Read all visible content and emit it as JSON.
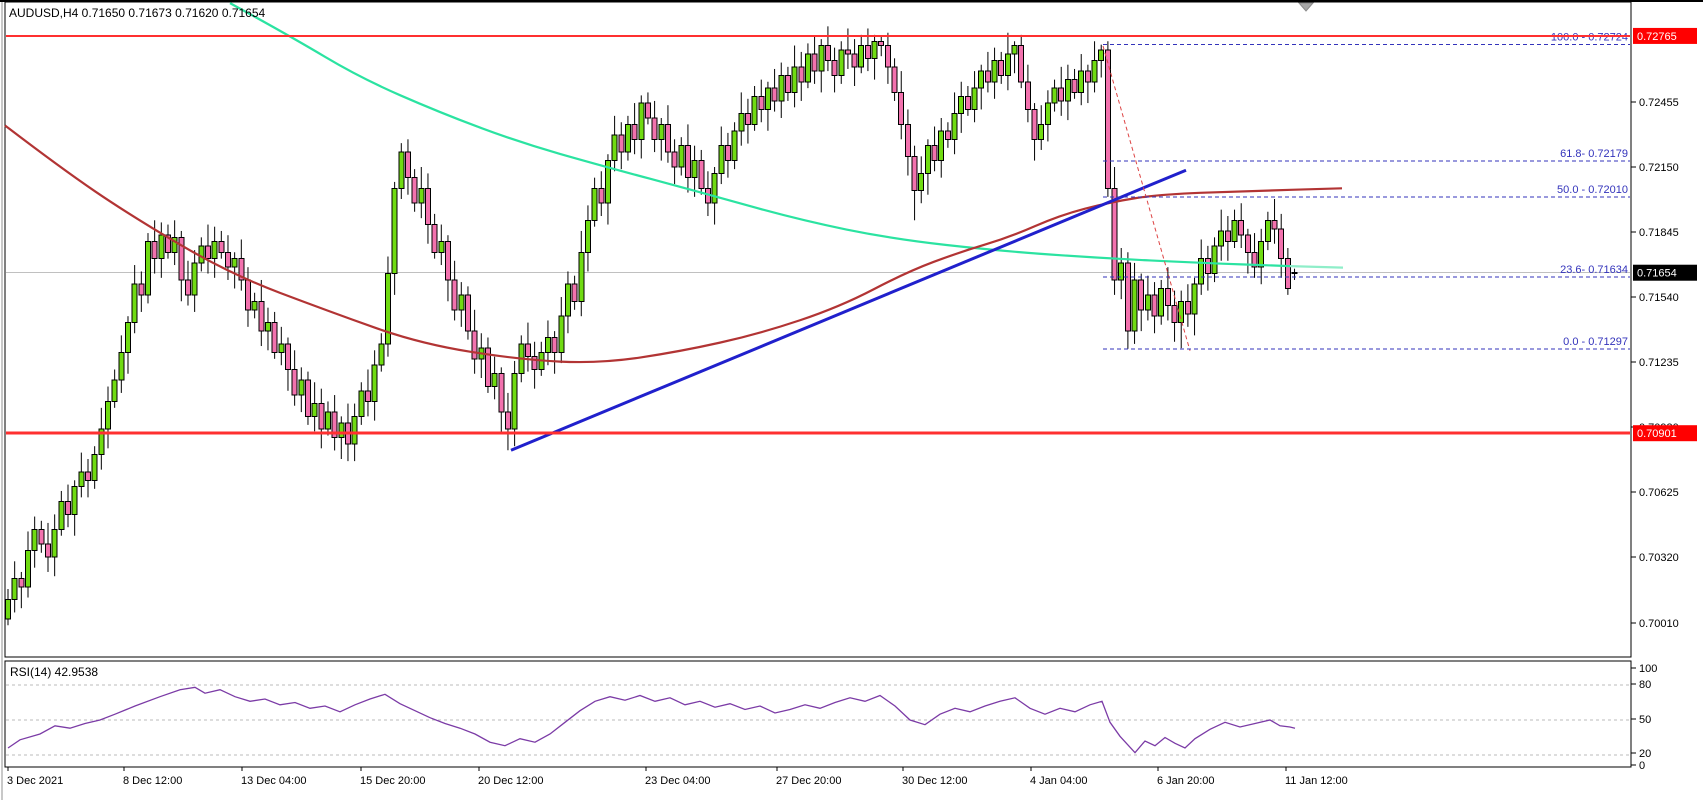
{
  "window": {
    "title": "AUDUSD,H4  0.71650 0.71673 0.71620 0.71654",
    "symbol": "AUDUSD",
    "timeframe": "H4"
  },
  "colors": {
    "bull_candle": "#70DB12",
    "bear_candle": "#F272AE",
    "candle_border": "#000000",
    "ma_slow": "#B23434",
    "ma_fast_green": "#2BE3A1",
    "ma_fast_green_tail": "#8FEEC9",
    "trendline": "#2020CC",
    "fib_line": "#3333BB",
    "fib_diagonal": "#DD4444",
    "resistance_line": "#FF3030",
    "current_price_line": "#C0C0C0",
    "rsi_line": "#7B3BA6",
    "rsi_grid": "#BBBBBB",
    "badge_red": "#FF0000",
    "badge_black": "#000000",
    "axis_text": "#000000"
  },
  "price_axis": {
    "ticks": [
      "0.72455",
      "0.72150",
      "0.71845",
      "0.71540",
      "0.71235",
      "0.70930",
      "0.70625",
      "0.70320",
      "0.70010"
    ],
    "badges": [
      {
        "text": "0.72765",
        "price": 0.72765,
        "color": "red"
      },
      {
        "text": "0.71654",
        "price": 0.71654,
        "color": "black"
      },
      {
        "text": "0.70901",
        "price": 0.70901,
        "color": "red"
      }
    ]
  },
  "time_axis": {
    "labels": [
      {
        "text": "3 Dec 2021",
        "x": 7
      },
      {
        "text": "8 Dec 12:00",
        "x": 123
      },
      {
        "text": "13 Dec 04:00",
        "x": 241
      },
      {
        "text": "15 Dec 20:00",
        "x": 360
      },
      {
        "text": "20 Dec 12:00",
        "x": 478
      },
      {
        "text": "23 Dec 04:00",
        "x": 645
      },
      {
        "text": "27 Dec 20:00",
        "x": 776
      },
      {
        "text": "30 Dec 12:00",
        "x": 902
      },
      {
        "text": "4 Jan 04:00",
        "x": 1030
      },
      {
        "text": "6 Jan 20:00",
        "x": 1157
      },
      {
        "text": "11 Jan 12:00",
        "x": 1285
      }
    ]
  },
  "chart_data": {
    "type": "candlestick",
    "symbol": "AUDUSD",
    "timeframe": "H4",
    "title": "AUDUSD,H4  0.71650 0.71673 0.71620 0.71654",
    "last_ohlc": {
      "open": 0.7165,
      "high": 0.71673,
      "low": 0.7162,
      "close": 0.71654
    },
    "ylim": [
      0.6995,
      0.7292
    ],
    "closes": [
      0.7012,
      0.7022,
      0.7018,
      0.7035,
      0.7045,
      0.7038,
      0.7032,
      0.7045,
      0.7058,
      0.7052,
      0.7065,
      0.7072,
      0.7068,
      0.708,
      0.7092,
      0.7105,
      0.7115,
      0.7128,
      0.7142,
      0.716,
      0.7155,
      0.718,
      0.7172,
      0.7183,
      0.7175,
      0.7182,
      0.7162,
      0.7155,
      0.717,
      0.7178,
      0.7172,
      0.718,
      0.7175,
      0.7168,
      0.7172,
      0.7162,
      0.7148,
      0.7152,
      0.7138,
      0.7142,
      0.7128,
      0.7132,
      0.712,
      0.7108,
      0.7115,
      0.7098,
      0.7104,
      0.7092,
      0.71,
      0.7088,
      0.7095,
      0.7085,
      0.7098,
      0.711,
      0.7105,
      0.7122,
      0.7132,
      0.7165,
      0.7205,
      0.7222,
      0.721,
      0.7198,
      0.7205,
      0.7188,
      0.7175,
      0.718,
      0.7162,
      0.7148,
      0.7155,
      0.7138,
      0.7125,
      0.713,
      0.7112,
      0.7118,
      0.71,
      0.7092,
      0.7118,
      0.7132,
      0.7126,
      0.712,
      0.7128,
      0.7135,
      0.7128,
      0.7145,
      0.716,
      0.7152,
      0.7175,
      0.719,
      0.7205,
      0.7198,
      0.7218,
      0.723,
      0.7222,
      0.7235,
      0.7228,
      0.7245,
      0.7238,
      0.7228,
      0.7235,
      0.7222,
      0.7215,
      0.7225,
      0.721,
      0.7218,
      0.7205,
      0.7198,
      0.7212,
      0.7225,
      0.7218,
      0.7232,
      0.724,
      0.7235,
      0.7248,
      0.7242,
      0.7252,
      0.7246,
      0.7258,
      0.725,
      0.7262,
      0.7255,
      0.7268,
      0.726,
      0.7272,
      0.7265,
      0.7258,
      0.727,
      0.7268,
      0.7262,
      0.7272,
      0.7266,
      0.7274,
      0.7272,
      0.7262,
      0.725,
      0.7235,
      0.722,
      0.7204,
      0.7212,
      0.7225,
      0.7218,
      0.7232,
      0.7228,
      0.724,
      0.7248,
      0.7242,
      0.7252,
      0.726,
      0.7255,
      0.7265,
      0.7258,
      0.7268,
      0.7272,
      0.7255,
      0.7242,
      0.7228,
      0.7235,
      0.7245,
      0.7252,
      0.7246,
      0.7256,
      0.725,
      0.726,
      0.7255,
      0.7265,
      0.727,
      0.7205,
      0.7162,
      0.717,
      0.7138,
      0.7162,
      0.7148,
      0.7155,
      0.7145,
      0.7158,
      0.715,
      0.7142,
      0.7152,
      0.7146,
      0.716,
      0.7172,
      0.7165,
      0.7178,
      0.7185,
      0.718,
      0.719,
      0.7183,
      0.7175,
      0.7168,
      0.718,
      0.719,
      0.7186,
      0.7172,
      0.7158,
      0.71654
    ],
    "candle_extremes": [
      [
        0,
        "low",
        0.7
      ],
      [
        23,
        "high",
        0.7189
      ],
      [
        51,
        "low",
        0.7077
      ],
      [
        59,
        "high",
        0.72262
      ],
      [
        75,
        "low",
        0.70821
      ],
      [
        95,
        "high",
        0.72486
      ],
      [
        131,
        "high",
        0.72765
      ],
      [
        136,
        "low",
        0.719
      ],
      [
        151,
        "high",
        0.7274
      ],
      [
        164,
        "high",
        0.72724
      ],
      [
        168,
        "low",
        0.71297
      ],
      [
        176,
        "low",
        0.713
      ]
    ],
    "overlays": {
      "ma_slow_red": [
        [
          5,
          0.72345
        ],
        [
          60,
          0.72148
        ],
        [
          130,
          0.71924
        ],
        [
          230,
          0.71648
        ],
        [
          330,
          0.71471
        ],
        [
          420,
          0.71321
        ],
        [
          520,
          0.71246
        ],
        [
          600,
          0.71228
        ],
        [
          680,
          0.71284
        ],
        [
          760,
          0.71368
        ],
        [
          840,
          0.71494
        ],
        [
          907,
          0.71658
        ],
        [
          960,
          0.71751
        ],
        [
          1010,
          0.71821
        ],
        [
          1060,
          0.71924
        ],
        [
          1110,
          0.71985
        ],
        [
          1160,
          0.72022
        ],
        [
          1240,
          0.72036
        ],
        [
          1342,
          0.7205
        ]
      ],
      "ma_fast_green": [
        [
          230,
          0.72919
        ],
        [
          290,
          0.72765
        ],
        [
          360,
          0.72569
        ],
        [
          440,
          0.72405
        ],
        [
          520,
          0.72265
        ],
        [
          600,
          0.72158
        ],
        [
          700,
          0.72032
        ],
        [
          800,
          0.71901
        ],
        [
          893,
          0.71812
        ],
        [
          1000,
          0.71756
        ],
        [
          1100,
          0.71723
        ],
        [
          1200,
          0.717
        ],
        [
          1290,
          0.71685
        ]
      ],
      "ma_fast_green_tail": [
        [
          1290,
          0.71685
        ],
        [
          1343,
          0.71678
        ]
      ],
      "trendline_blue": [
        [
          511,
          0.70821
        ],
        [
          1186,
          0.72135
        ]
      ],
      "fib_diagonal_red": [
        [
          1103,
          0.72718
        ],
        [
          1190,
          0.71288
        ]
      ],
      "fib_levels": [
        {
          "label": "100.0 - 0.72724",
          "price": 0.72724
        },
        {
          "label": "61.8- 0.72179",
          "price": 0.72179
        },
        {
          "label": "50.0 - 0.72010",
          "price": 0.7201
        },
        {
          "label": "23.6- 0.71634",
          "price": 0.71634
        },
        {
          "label": "0.0 - 0.71297",
          "price": 0.71297
        }
      ],
      "fib_x_start": 1103,
      "horizontal_lines": [
        {
          "price": 0.72765,
          "badge": "0.72765",
          "width": 2
        },
        {
          "price": 0.70901,
          "badge": "0.70901",
          "width": 3
        }
      ],
      "current_price": 0.71654
    },
    "rsi": {
      "label_text": "RSI(14) 42.9538",
      "indicator": "RSI",
      "period": 14,
      "value": "42.9538",
      "scale_ticks": [
        "100",
        "80",
        "50",
        "20",
        "0"
      ],
      "grid_levels": [
        80,
        50,
        20
      ],
      "points": [
        [
          8,
          26
        ],
        [
          20,
          33
        ],
        [
          40,
          38
        ],
        [
          55,
          45
        ],
        [
          70,
          43
        ],
        [
          85,
          47
        ],
        [
          100,
          50
        ],
        [
          115,
          55
        ],
        [
          135,
          62
        ],
        [
          160,
          70
        ],
        [
          180,
          76
        ],
        [
          195,
          78
        ],
        [
          205,
          73
        ],
        [
          220,
          76
        ],
        [
          235,
          70
        ],
        [
          250,
          66
        ],
        [
          265,
          68
        ],
        [
          280,
          63
        ],
        [
          295,
          65
        ],
        [
          310,
          60
        ],
        [
          325,
          62
        ],
        [
          340,
          57
        ],
        [
          355,
          63
        ],
        [
          370,
          68
        ],
        [
          385,
          72
        ],
        [
          400,
          64
        ],
        [
          415,
          58
        ],
        [
          430,
          52
        ],
        [
          445,
          47
        ],
        [
          460,
          43
        ],
        [
          475,
          38
        ],
        [
          490,
          31
        ],
        [
          505,
          28
        ],
        [
          520,
          34
        ],
        [
          535,
          31
        ],
        [
          550,
          38
        ],
        [
          565,
          48
        ],
        [
          580,
          58
        ],
        [
          595,
          66
        ],
        [
          610,
          70
        ],
        [
          625,
          67
        ],
        [
          640,
          71
        ],
        [
          655,
          66
        ],
        [
          670,
          69
        ],
        [
          685,
          63
        ],
        [
          700,
          66
        ],
        [
          715,
          61
        ],
        [
          730,
          64
        ],
        [
          745,
          59
        ],
        [
          760,
          62
        ],
        [
          775,
          56
        ],
        [
          790,
          59
        ],
        [
          805,
          63
        ],
        [
          820,
          60
        ],
        [
          835,
          65
        ],
        [
          850,
          69
        ],
        [
          865,
          66
        ],
        [
          880,
          71
        ],
        [
          895,
          62
        ],
        [
          910,
          50
        ],
        [
          925,
          46
        ],
        [
          940,
          55
        ],
        [
          955,
          60
        ],
        [
          970,
          57
        ],
        [
          985,
          62
        ],
        [
          1000,
          66
        ],
        [
          1015,
          69
        ],
        [
          1030,
          60
        ],
        [
          1045,
          55
        ],
        [
          1060,
          60
        ],
        [
          1075,
          57
        ],
        [
          1090,
          63
        ],
        [
          1102,
          66
        ],
        [
          1110,
          48
        ],
        [
          1120,
          36
        ],
        [
          1135,
          22
        ],
        [
          1145,
          32
        ],
        [
          1155,
          28
        ],
        [
          1165,
          35
        ],
        [
          1175,
          30
        ],
        [
          1185,
          26
        ],
        [
          1195,
          34
        ],
        [
          1210,
          42
        ],
        [
          1225,
          48
        ],
        [
          1240,
          44
        ],
        [
          1255,
          47
        ],
        [
          1270,
          50
        ],
        [
          1280,
          45
        ],
        [
          1290,
          44
        ],
        [
          1295,
          43
        ]
      ]
    }
  }
}
